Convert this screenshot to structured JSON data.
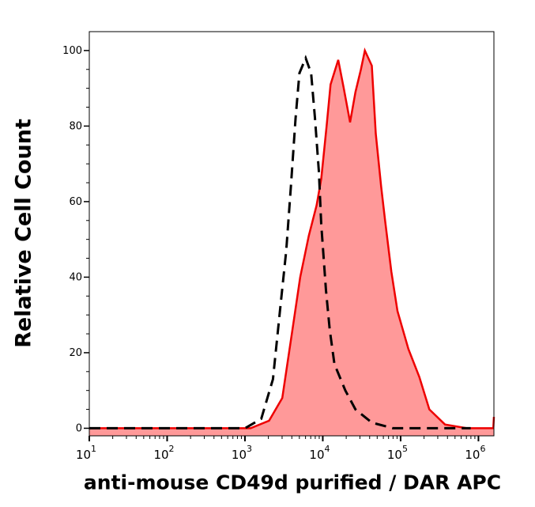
{
  "chart_data": {
    "type": "area",
    "title": "",
    "xlabel": "anti-mouse CD49d purified / DAR APC",
    "ylabel": "Relative Cell Count",
    "xscale": "log",
    "xlim": [
      10,
      1580000
    ],
    "ylim": [
      -2,
      105
    ],
    "grid": false,
    "x_ticks": [
      {
        "base": "10",
        "exp": "1",
        "value": 10
      },
      {
        "base": "10",
        "exp": "2",
        "value": 100
      },
      {
        "base": "10",
        "exp": "3",
        "value": 1000
      },
      {
        "base": "10",
        "exp": "4",
        "value": 10000
      },
      {
        "base": "10",
        "exp": "5",
        "value": 100000
      },
      {
        "base": "10",
        "exp": "6",
        "value": 1000000
      }
    ],
    "y_ticks": [
      "0",
      "20",
      "40",
      "60",
      "80",
      "100"
    ],
    "series": [
      {
        "style": "filled-solid",
        "color": "#ee0000",
        "fill": "#ff9999",
        "x": [
          10,
          631,
          1180,
          2040,
          3020,
          4070,
          5130,
          6610,
          8320,
          9550,
          11200,
          12600,
          15800,
          18600,
          22400,
          26300,
          30900,
          34700,
          42700,
          47900,
          56200,
          63100,
          75900,
          91200,
          126000,
          174000,
          234000,
          372000,
          708000,
          1410000,
          1550000,
          1580000
        ],
        "y": [
          0,
          0,
          0,
          2,
          8,
          26,
          40,
          51,
          59,
          66,
          80,
          91,
          97.5,
          90,
          81,
          89,
          95,
          100,
          96,
          78,
          64,
          55,
          41.5,
          31,
          21,
          13.6,
          5,
          1,
          0,
          0,
          0,
          3
        ]
      },
      {
        "style": "dashed",
        "color": "#000000",
        "x": [
          10,
          1000,
          1620,
          2290,
          2880,
          3390,
          3890,
          4470,
          5010,
          6030,
          7080,
          7940,
          8910,
          9550,
          11000,
          12300,
          14100,
          19500,
          26300,
          42700,
          79400,
          794000
        ],
        "y": [
          0,
          0,
          2.5,
          13,
          33,
          47,
          64,
          82,
          94,
          98,
          94,
          82,
          68,
          54,
          36.5,
          26,
          17,
          10,
          5,
          1.5,
          0,
          0
        ]
      }
    ]
  }
}
